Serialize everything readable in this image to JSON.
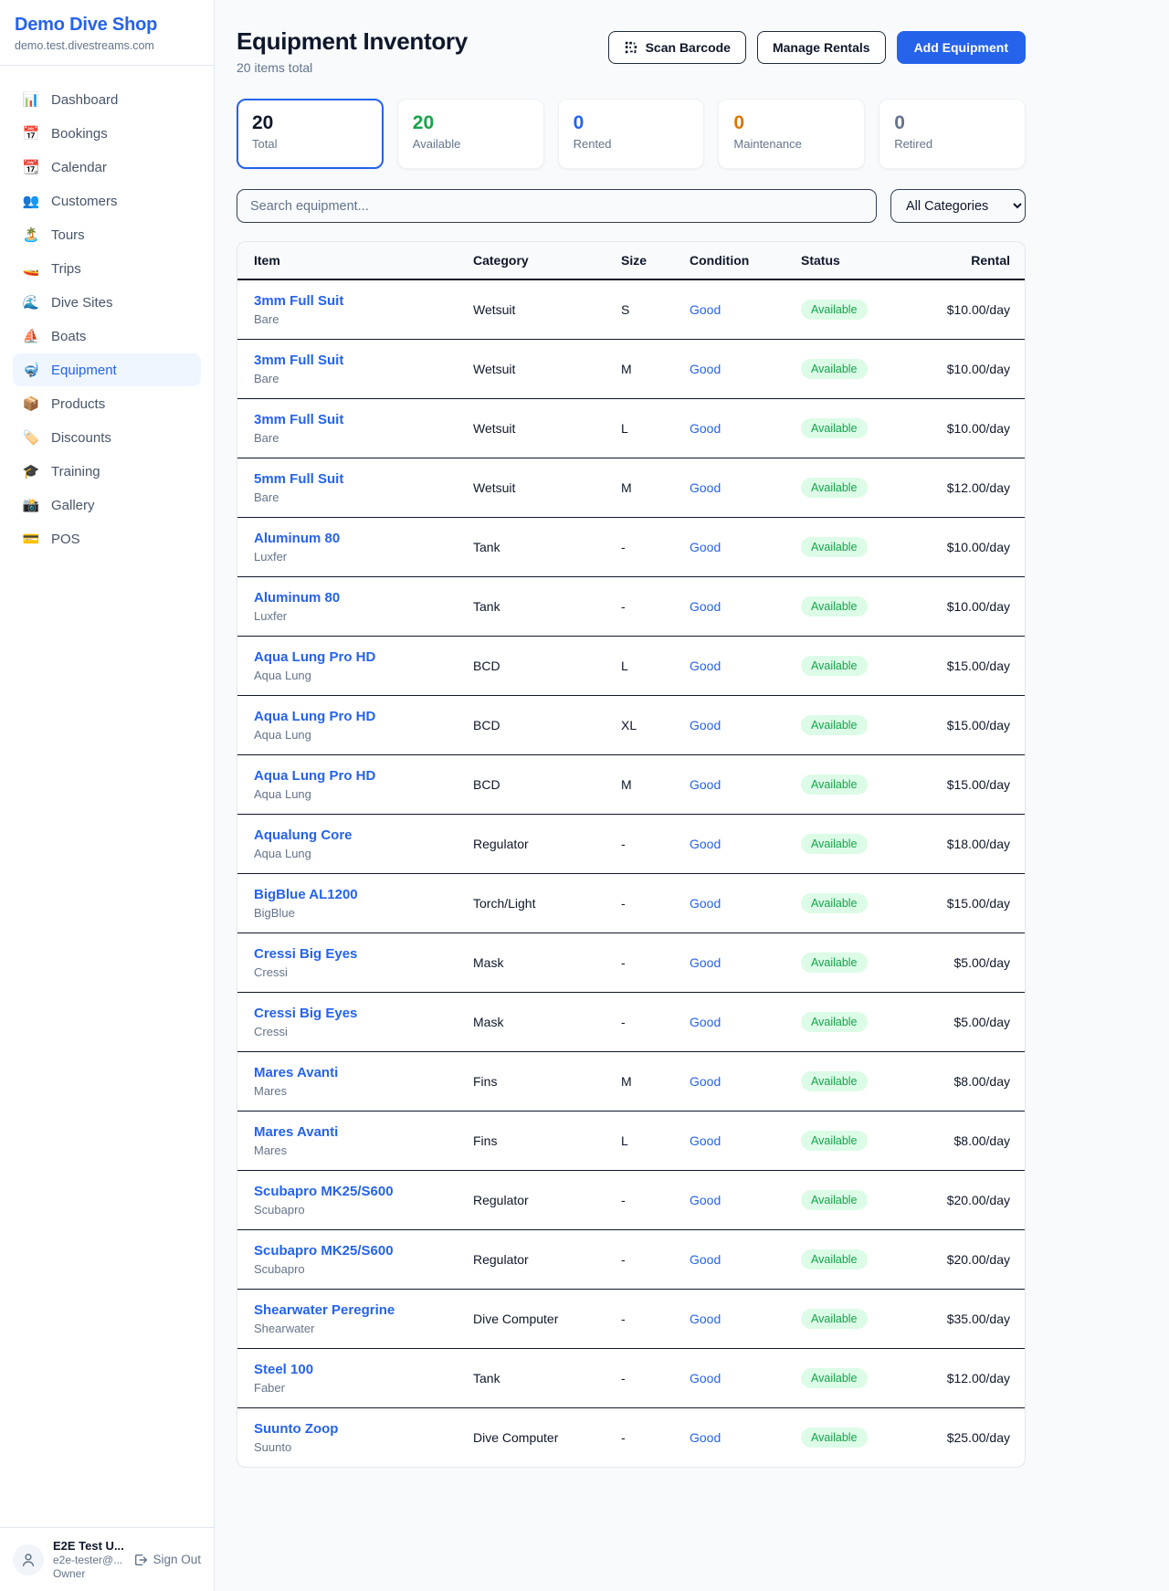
{
  "brand": {
    "name": "Demo Dive Shop",
    "domain": "demo.test.divestreams.com"
  },
  "sidebar": {
    "items": [
      {
        "name": "dashboard",
        "icon_name": "bar-chart-icon",
        "icon": "📊",
        "label": "Dashboard",
        "active": false
      },
      {
        "name": "bookings",
        "icon_name": "calendar-date-icon",
        "icon": "📅",
        "label": "Bookings",
        "active": false
      },
      {
        "name": "calendar",
        "icon_name": "tear-off-calendar-icon",
        "icon": "📆",
        "label": "Calendar",
        "active": false
      },
      {
        "name": "customers",
        "icon_name": "people-icon",
        "icon": "👥",
        "label": "Customers",
        "active": false
      },
      {
        "name": "tours",
        "icon_name": "island-icon",
        "icon": "🏝️",
        "label": "Tours",
        "active": false
      },
      {
        "name": "trips",
        "icon_name": "speedboat-icon",
        "icon": "🚤",
        "label": "Trips",
        "active": false
      },
      {
        "name": "dive-sites",
        "icon_name": "wave-icon",
        "icon": "🌊",
        "label": "Dive Sites",
        "active": false
      },
      {
        "name": "boats",
        "icon_name": "sailboat-icon",
        "icon": "⛵",
        "label": "Boats",
        "active": false
      },
      {
        "name": "equipment",
        "icon_name": "diving-mask-icon",
        "icon": "🤿",
        "label": "Equipment",
        "active": true
      },
      {
        "name": "products",
        "icon_name": "package-icon",
        "icon": "📦",
        "label": "Products",
        "active": false
      },
      {
        "name": "discounts",
        "icon_name": "tag-icon",
        "icon": "🏷️",
        "label": "Discounts",
        "active": false
      },
      {
        "name": "training",
        "icon_name": "graduation-cap-icon",
        "icon": "🎓",
        "label": "Training",
        "active": false
      },
      {
        "name": "gallery",
        "icon_name": "camera-icon",
        "icon": "📸",
        "label": "Gallery",
        "active": false
      },
      {
        "name": "pos",
        "icon_name": "credit-card-icon",
        "icon": "💳",
        "label": "POS",
        "active": false
      }
    ]
  },
  "user": {
    "name": "E2E Test U...",
    "email": "e2e-tester@...",
    "role": "Owner",
    "sign_out_label": "Sign Out"
  },
  "header": {
    "title": "Equipment Inventory",
    "subtitle": "20 items total",
    "scan_button": "Scan Barcode",
    "manage_button": "Manage Rentals",
    "add_button": "Add Equipment"
  },
  "stats": [
    {
      "value": "20",
      "label": "Total",
      "color": "#0f172a",
      "selected": true
    },
    {
      "value": "20",
      "label": "Available",
      "color": "#16a34a",
      "selected": false
    },
    {
      "value": "0",
      "label": "Rented",
      "color": "#2563eb",
      "selected": false
    },
    {
      "value": "0",
      "label": "Maintenance",
      "color": "#d97706",
      "selected": false
    },
    {
      "value": "0",
      "label": "Retired",
      "color": "#64748b",
      "selected": false
    }
  ],
  "filters": {
    "search_placeholder": "Search equipment...",
    "category_selected": "All Categories"
  },
  "table": {
    "columns": [
      "Item",
      "Category",
      "Size",
      "Condition",
      "Status",
      "Rental"
    ],
    "rows": [
      {
        "name": "3mm Full Suit",
        "brand": "Bare",
        "category": "Wetsuit",
        "size": "S",
        "condition": "Good",
        "status": "Available",
        "rental": "$10.00/day"
      },
      {
        "name": "3mm Full Suit",
        "brand": "Bare",
        "category": "Wetsuit",
        "size": "M",
        "condition": "Good",
        "status": "Available",
        "rental": "$10.00/day"
      },
      {
        "name": "3mm Full Suit",
        "brand": "Bare",
        "category": "Wetsuit",
        "size": "L",
        "condition": "Good",
        "status": "Available",
        "rental": "$10.00/day"
      },
      {
        "name": "5mm Full Suit",
        "brand": "Bare",
        "category": "Wetsuit",
        "size": "M",
        "condition": "Good",
        "status": "Available",
        "rental": "$12.00/day"
      },
      {
        "name": "Aluminum 80",
        "brand": "Luxfer",
        "category": "Tank",
        "size": "-",
        "condition": "Good",
        "status": "Available",
        "rental": "$10.00/day"
      },
      {
        "name": "Aluminum 80",
        "brand": "Luxfer",
        "category": "Tank",
        "size": "-",
        "condition": "Good",
        "status": "Available",
        "rental": "$10.00/day"
      },
      {
        "name": "Aqua Lung Pro HD",
        "brand": "Aqua Lung",
        "category": "BCD",
        "size": "L",
        "condition": "Good",
        "status": "Available",
        "rental": "$15.00/day"
      },
      {
        "name": "Aqua Lung Pro HD",
        "brand": "Aqua Lung",
        "category": "BCD",
        "size": "XL",
        "condition": "Good",
        "status": "Available",
        "rental": "$15.00/day"
      },
      {
        "name": "Aqua Lung Pro HD",
        "brand": "Aqua Lung",
        "category": "BCD",
        "size": "M",
        "condition": "Good",
        "status": "Available",
        "rental": "$15.00/day"
      },
      {
        "name": "Aqualung Core",
        "brand": "Aqua Lung",
        "category": "Regulator",
        "size": "-",
        "condition": "Good",
        "status": "Available",
        "rental": "$18.00/day"
      },
      {
        "name": "BigBlue AL1200",
        "brand": "BigBlue",
        "category": "Torch/Light",
        "size": "-",
        "condition": "Good",
        "status": "Available",
        "rental": "$15.00/day"
      },
      {
        "name": "Cressi Big Eyes",
        "brand": "Cressi",
        "category": "Mask",
        "size": "-",
        "condition": "Good",
        "status": "Available",
        "rental": "$5.00/day"
      },
      {
        "name": "Cressi Big Eyes",
        "brand": "Cressi",
        "category": "Mask",
        "size": "-",
        "condition": "Good",
        "status": "Available",
        "rental": "$5.00/day"
      },
      {
        "name": "Mares Avanti",
        "brand": "Mares",
        "category": "Fins",
        "size": "M",
        "condition": "Good",
        "status": "Available",
        "rental": "$8.00/day"
      },
      {
        "name": "Mares Avanti",
        "brand": "Mares",
        "category": "Fins",
        "size": "L",
        "condition": "Good",
        "status": "Available",
        "rental": "$8.00/day"
      },
      {
        "name": "Scubapro MK25/S600",
        "brand": "Scubapro",
        "category": "Regulator",
        "size": "-",
        "condition": "Good",
        "status": "Available",
        "rental": "$20.00/day"
      },
      {
        "name": "Scubapro MK25/S600",
        "brand": "Scubapro",
        "category": "Regulator",
        "size": "-",
        "condition": "Good",
        "status": "Available",
        "rental": "$20.00/day"
      },
      {
        "name": "Shearwater Peregrine",
        "brand": "Shearwater",
        "category": "Dive Computer",
        "size": "-",
        "condition": "Good",
        "status": "Available",
        "rental": "$35.00/day"
      },
      {
        "name": "Steel 100",
        "brand": "Faber",
        "category": "Tank",
        "size": "-",
        "condition": "Good",
        "status": "Available",
        "rental": "$12.00/day"
      },
      {
        "name": "Suunto Zoop",
        "brand": "Suunto",
        "category": "Dive Computer",
        "size": "-",
        "condition": "Good",
        "status": "Available",
        "rental": "$25.00/day"
      }
    ]
  },
  "colors": {
    "accent": "#2563eb",
    "available_green": "#16a34a",
    "maintenance_orange": "#d97706",
    "retired_gray": "#64748b",
    "row_border": "#0f172a"
  }
}
